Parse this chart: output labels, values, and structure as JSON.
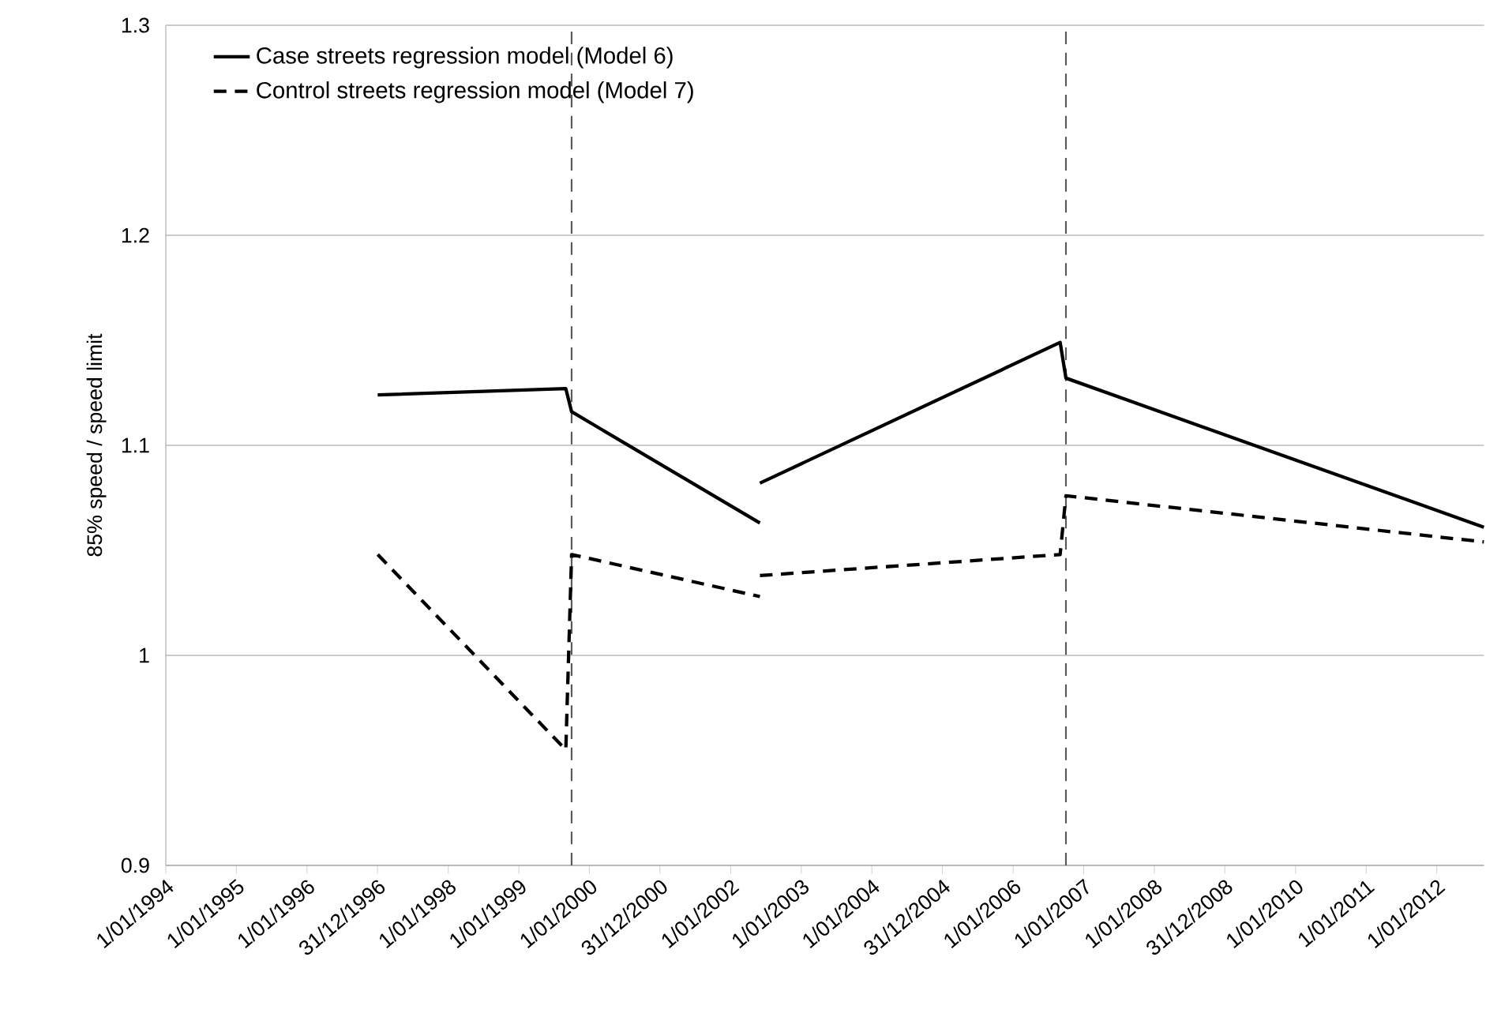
{
  "chart_data": {
    "type": "line",
    "ylabel": "85% speed / speed limit",
    "series": [
      {
        "name": "Case streets regression model (Model 6)",
        "color": "#000000",
        "line_style": "solid",
        "x": [
          "1997-01",
          "1999-09",
          "1999-10",
          "2002-06"
        ],
        "values": [
          1.124,
          1.127,
          1.116,
          1.063
        ]
      },
      {
        "name": "Control streets regression model (Model 7)",
        "color": "#000000",
        "line_style": "dashed",
        "x": [
          "1997-01",
          "1999-09",
          "1999-10",
          "2002-06"
        ],
        "values": [
          1.048,
          0.955,
          1.048,
          1.028
        ]
      },
      {
        "color": "#000000",
        "line_style": "solid",
        "x": [
          "2002-06",
          "2006-09",
          "2006-10",
          "2012-09"
        ],
        "values": [
          1.082,
          1.149,
          1.132,
          1.061
        ]
      },
      {
        "color": "#000000",
        "line_style": "dashed",
        "x": [
          "2002-06",
          "2006-09",
          "2006-10",
          "2012-09"
        ],
        "values": [
          1.038,
          1.048,
          1.076,
          1.054
        ]
      }
    ],
    "xlim": [
      "1994-01-01",
      "2012-09"
    ],
    "xticks": [
      {
        "value": "1994-01-01",
        "label": "1/01/1994"
      },
      {
        "value": "1995-01-01",
        "label": "1/01/1995"
      },
      {
        "value": "1996-01-01",
        "label": "1/01/1996"
      },
      {
        "value": "1996-12-31",
        "label": "31/12/1996"
      },
      {
        "value": "1998-01-01",
        "label": "1/01/1998"
      },
      {
        "value": "1999-01-01",
        "label": "1/01/1999"
      },
      {
        "value": "2000-01-01",
        "label": "1/01/2000"
      },
      {
        "value": "2000-12-31",
        "label": "31/12/2000"
      },
      {
        "value": "2002-01-01",
        "label": "1/01/2002"
      },
      {
        "value": "2003-01-01",
        "label": "1/01/2003"
      },
      {
        "value": "2004-01-01",
        "label": "1/01/2004"
      },
      {
        "value": "2004-12-31",
        "label": "31/12/2004"
      },
      {
        "value": "2006-01-01",
        "label": "1/01/2006"
      },
      {
        "value": "2007-01-01",
        "label": "1/01/2007"
      },
      {
        "value": "2008-01-01",
        "label": "1/01/2008"
      },
      {
        "value": "2008-12-31",
        "label": "31/12/2008"
      },
      {
        "value": "2010-01-01",
        "label": "1/01/2010"
      },
      {
        "value": "2011-01-01",
        "label": "1/01/2011"
      },
      {
        "value": "2012-01-01",
        "label": "1/01/2012"
      }
    ],
    "ylim": [
      0.9,
      1.3
    ],
    "yticks": [
      0.9,
      1,
      1.1,
      1.2,
      1.3
    ],
    "ref_lines": [
      {
        "axis": "x",
        "value": "1999-10",
        "color": "#595959",
        "line_style": "dashed"
      },
      {
        "axis": "x",
        "value": "2006-10",
        "color": "#595959",
        "line_style": "dashed"
      }
    ],
    "grid": "y",
    "legend": "top left",
    "marker": "none"
  }
}
